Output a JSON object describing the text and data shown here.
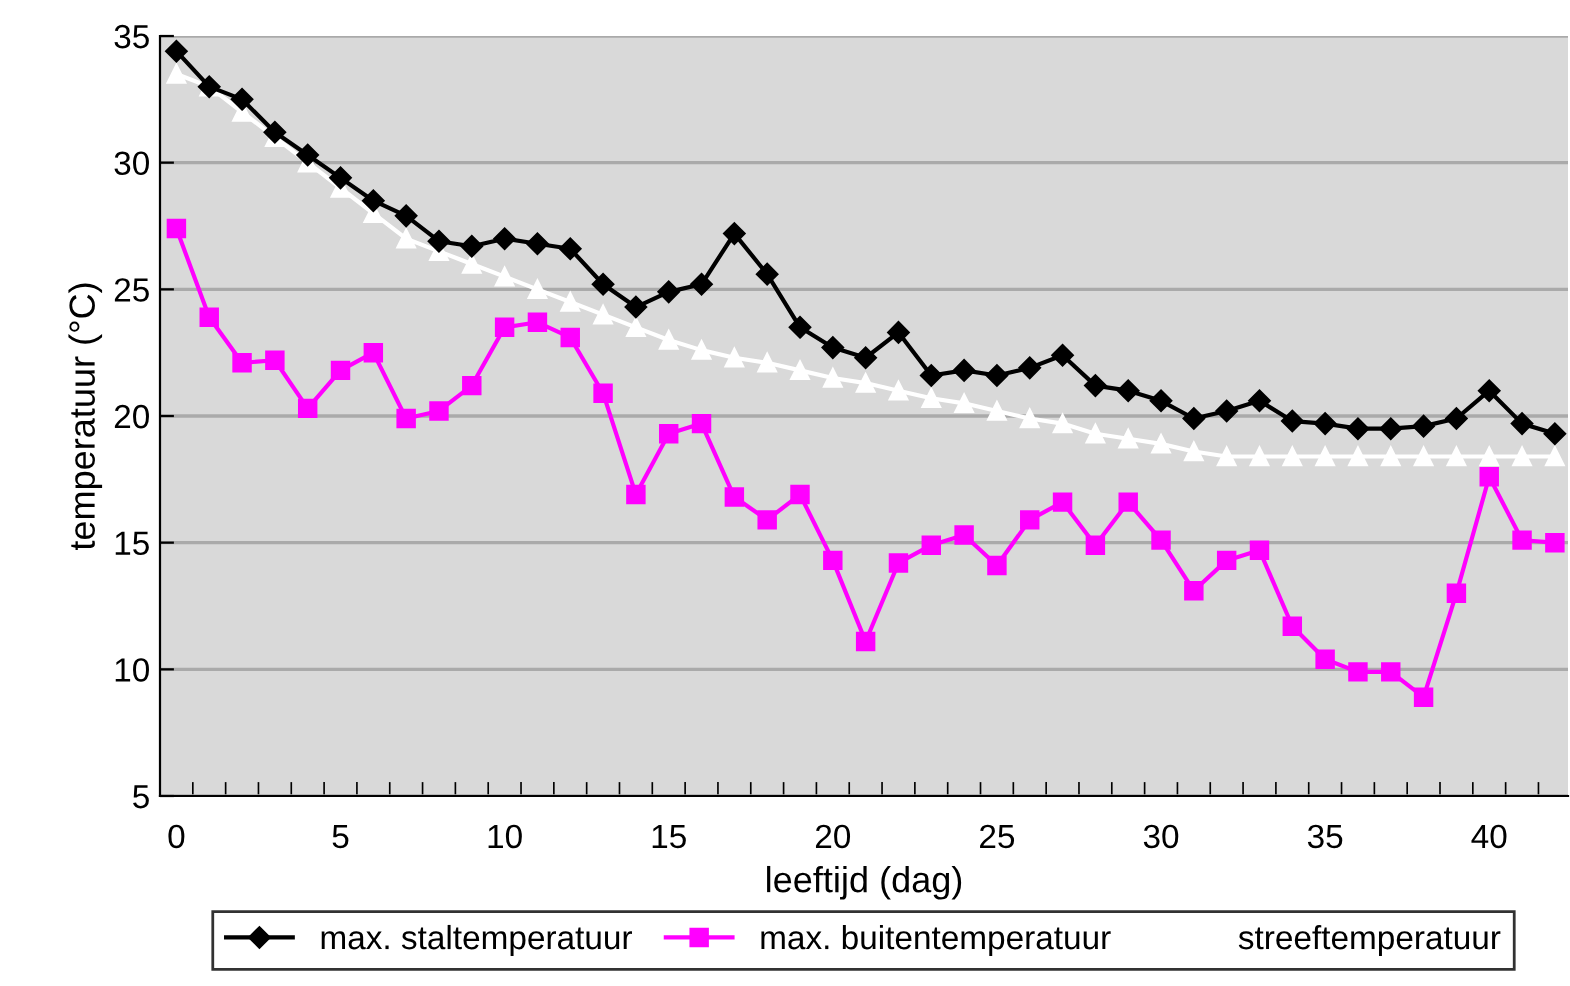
{
  "chart_data": {
    "type": "line",
    "xlabel": "leeftijd (dag)",
    "ylabel": "temperatuur (°C)",
    "categories": [
      "0",
      null,
      null,
      null,
      null,
      "5",
      null,
      null,
      null,
      null,
      "10",
      null,
      null,
      null,
      null,
      "15",
      null,
      null,
      null,
      null,
      "20",
      null,
      null,
      null,
      null,
      "25",
      null,
      null,
      null,
      null,
      "30",
      null,
      null,
      null,
      null,
      "35",
      null,
      null,
      null,
      null,
      "40",
      null,
      null
    ],
    "series": [
      {
        "name": "max. staltemperatuur",
        "color": "#000000",
        "marker": "diamond",
        "values": [
          34.4,
          33.0,
          32.5,
          31.2,
          30.3,
          29.4,
          28.5,
          27.9,
          26.9,
          26.7,
          27.0,
          26.8,
          26.6,
          25.2,
          24.3,
          24.9,
          25.2,
          27.2,
          25.6,
          23.5,
          22.7,
          22.3,
          23.3,
          21.6,
          21.8,
          21.6,
          21.9,
          22.4,
          21.2,
          21.0,
          20.6,
          19.9,
          20.2,
          20.6,
          19.8,
          19.7,
          19.5,
          19.5,
          19.6,
          19.9,
          21.0,
          19.7,
          19.3
        ]
      },
      {
        "name": "max. buitentemperatuur",
        "color": "#ff00ff",
        "marker": "square",
        "values": [
          27.4,
          23.9,
          22.1,
          22.2,
          20.3,
          21.8,
          22.5,
          19.9,
          20.2,
          21.2,
          23.5,
          23.7,
          23.1,
          20.9,
          16.9,
          19.3,
          19.7,
          16.8,
          15.9,
          16.9,
          14.3,
          11.1,
          14.2,
          14.9,
          15.3,
          14.1,
          15.9,
          16.6,
          14.9,
          16.6,
          15.1,
          13.1,
          14.3,
          14.7,
          11.7,
          10.4,
          9.9,
          9.9,
          8.9,
          13.0,
          17.6,
          15.1,
          15.0
        ]
      },
      {
        "name": "streeftemperatuur",
        "color": "#ffffff",
        "marker": "triangle",
        "values": [
          33.5,
          33.0,
          32.0,
          31.0,
          30.0,
          29.0,
          28.0,
          27.0,
          26.5,
          26.0,
          25.5,
          25.0,
          24.5,
          24.0,
          23.5,
          23.0,
          22.6,
          22.3,
          22.1,
          21.8,
          21.5,
          21.3,
          21.0,
          20.7,
          20.5,
          20.2,
          19.9,
          19.7,
          19.3,
          19.1,
          18.9,
          18.6,
          18.4,
          18.4,
          18.4,
          18.4,
          18.4,
          18.4,
          18.4,
          18.4,
          18.4,
          18.4,
          18.4
        ]
      }
    ],
    "ylim": [
      5,
      35
    ],
    "yticks": [
      5,
      10,
      15,
      20,
      25,
      30,
      35
    ],
    "grid": "y",
    "legend": "bottom",
    "line_style": "solid"
  }
}
